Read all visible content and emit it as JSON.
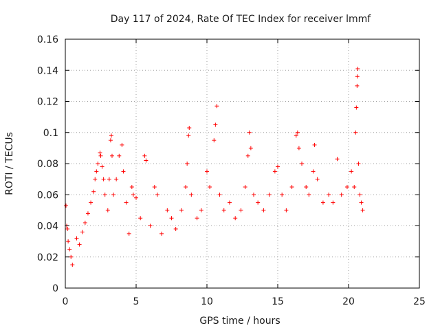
{
  "chart_data": {
    "type": "scatter",
    "title": "Day 117 of 2024, Rate Of TEC Index for receiver lmmf",
    "xlabel": "GPS time / hours",
    "ylabel": "ROTI / TECUs",
    "xlim": [
      0,
      25
    ],
    "ylim": [
      0,
      0.16
    ],
    "xticks": [
      0,
      5,
      10,
      15,
      20,
      25
    ],
    "xtick_labels": [
      "0",
      "5",
      "10",
      "15",
      "20",
      "25"
    ],
    "yticks": [
      0,
      0.02,
      0.04,
      0.06,
      0.08,
      0.1,
      0.12,
      0.14,
      0.16
    ],
    "ytick_labels": [
      "0",
      "0.02",
      "0.04",
      "0.06",
      "0.08",
      "0.1",
      "0.12",
      "0.14",
      "0.16"
    ],
    "grid": true,
    "marker": "+",
    "color": "#ff0000",
    "series": [
      {
        "name": "ROTI",
        "points": [
          [
            0.05,
            0.053
          ],
          [
            0.1,
            0.04
          ],
          [
            0.15,
            0.038
          ],
          [
            0.2,
            0.03
          ],
          [
            0.3,
            0.025
          ],
          [
            0.4,
            0.02
          ],
          [
            0.5,
            0.015
          ],
          [
            0.8,
            0.032
          ],
          [
            1.0,
            0.028
          ],
          [
            1.2,
            0.036
          ],
          [
            1.4,
            0.042
          ],
          [
            1.6,
            0.048
          ],
          [
            1.8,
            0.055
          ],
          [
            2.0,
            0.062
          ],
          [
            2.1,
            0.07
          ],
          [
            2.2,
            0.075
          ],
          [
            2.3,
            0.08
          ],
          [
            2.45,
            0.087
          ],
          [
            2.5,
            0.085
          ],
          [
            2.6,
            0.078
          ],
          [
            2.7,
            0.07
          ],
          [
            2.8,
            0.06
          ],
          [
            3.0,
            0.05
          ],
          [
            3.1,
            0.07
          ],
          [
            3.2,
            0.095
          ],
          [
            3.25,
            0.098
          ],
          [
            3.3,
            0.085
          ],
          [
            3.4,
            0.06
          ],
          [
            3.6,
            0.07
          ],
          [
            3.8,
            0.085
          ],
          [
            4.0,
            0.092
          ],
          [
            4.1,
            0.075
          ],
          [
            4.3,
            0.055
          ],
          [
            4.5,
            0.035
          ],
          [
            4.7,
            0.065
          ],
          [
            4.8,
            0.06
          ],
          [
            5.0,
            0.058
          ],
          [
            5.3,
            0.045
          ],
          [
            5.6,
            0.085
          ],
          [
            5.7,
            0.082
          ],
          [
            6.0,
            0.04
          ],
          [
            6.3,
            0.065
          ],
          [
            6.5,
            0.06
          ],
          [
            6.8,
            0.035
          ],
          [
            7.2,
            0.05
          ],
          [
            7.5,
            0.045
          ],
          [
            7.8,
            0.038
          ],
          [
            8.2,
            0.05
          ],
          [
            8.5,
            0.065
          ],
          [
            8.6,
            0.08
          ],
          [
            8.7,
            0.098
          ],
          [
            8.75,
            0.103
          ],
          [
            8.9,
            0.06
          ],
          [
            9.3,
            0.045
          ],
          [
            9.6,
            0.05
          ],
          [
            10.0,
            0.075
          ],
          [
            10.2,
            0.065
          ],
          [
            10.5,
            0.095
          ],
          [
            10.6,
            0.105
          ],
          [
            10.7,
            0.117
          ],
          [
            10.9,
            0.06
          ],
          [
            11.2,
            0.05
          ],
          [
            11.6,
            0.055
          ],
          [
            12.0,
            0.045
          ],
          [
            12.4,
            0.05
          ],
          [
            12.7,
            0.065
          ],
          [
            12.9,
            0.085
          ],
          [
            13.0,
            0.1
          ],
          [
            13.1,
            0.09
          ],
          [
            13.3,
            0.06
          ],
          [
            13.6,
            0.055
          ],
          [
            14.0,
            0.05
          ],
          [
            14.4,
            0.06
          ],
          [
            14.8,
            0.075
          ],
          [
            15.0,
            0.078
          ],
          [
            15.3,
            0.06
          ],
          [
            15.6,
            0.05
          ],
          [
            16.0,
            0.065
          ],
          [
            16.3,
            0.098
          ],
          [
            16.4,
            0.1
          ],
          [
            16.5,
            0.09
          ],
          [
            16.7,
            0.08
          ],
          [
            17.0,
            0.065
          ],
          [
            17.2,
            0.06
          ],
          [
            17.5,
            0.075
          ],
          [
            17.6,
            0.092
          ],
          [
            17.8,
            0.07
          ],
          [
            18.2,
            0.055
          ],
          [
            18.6,
            0.06
          ],
          [
            18.9,
            0.055
          ],
          [
            19.2,
            0.083
          ],
          [
            19.5,
            0.06
          ],
          [
            19.9,
            0.065
          ],
          [
            20.2,
            0.075
          ],
          [
            20.4,
            0.065
          ],
          [
            20.5,
            0.1
          ],
          [
            20.55,
            0.116
          ],
          [
            20.6,
            0.13
          ],
          [
            20.62,
            0.136
          ],
          [
            20.65,
            0.141
          ],
          [
            20.7,
            0.08
          ],
          [
            20.8,
            0.06
          ],
          [
            20.9,
            0.055
          ],
          [
            21.0,
            0.05
          ]
        ]
      }
    ]
  }
}
